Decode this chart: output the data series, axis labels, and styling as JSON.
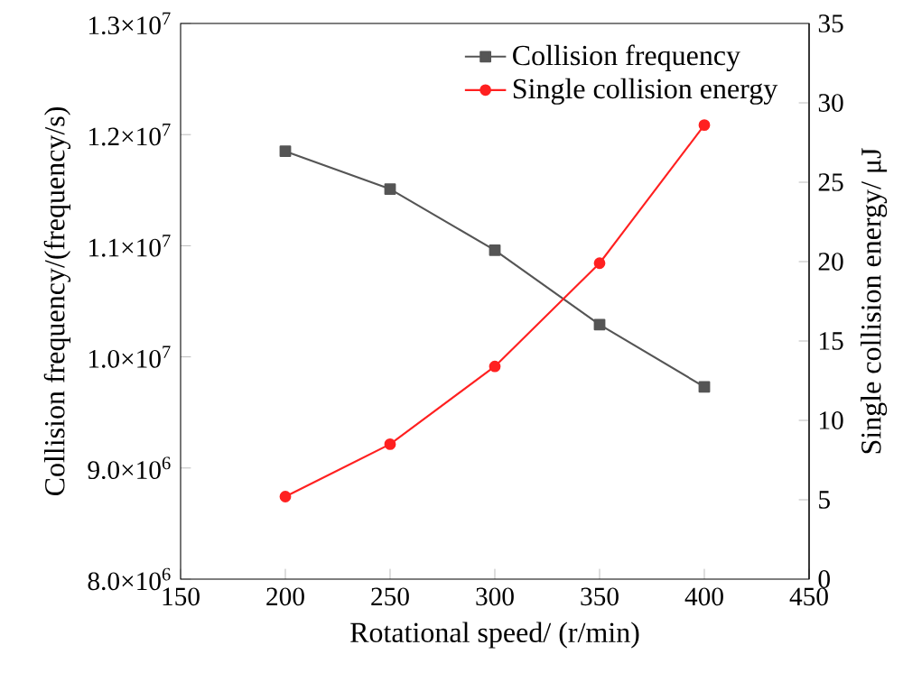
{
  "chart_data": {
    "type": "line",
    "xlabel": "Rotational speed/ (r/min)",
    "ylabel": "Collision frequency/(frequency/s)",
    "y2label": "Single collision energy/ μJ",
    "x": [
      200,
      250,
      300,
      350,
      400
    ],
    "series": [
      {
        "name": "Collision frequency",
        "color": "#555555",
        "marker": "square",
        "values": [
          11850000,
          11510000,
          10960000,
          10290000,
          9730000
        ]
      },
      {
        "name": "Single collision energy",
        "color": "#ff2020",
        "marker": "circle",
        "axis": "y2",
        "values": [
          5.2,
          8.5,
          13.4,
          19.9,
          28.6
        ]
      }
    ],
    "xlim": [
      150,
      450
    ],
    "xticks": [
      150,
      200,
      250,
      300,
      350,
      400,
      450
    ],
    "ylim": [
      8000000,
      13000000
    ],
    "yticks": [
      {
        "value": 8000000,
        "label": "8.0×10$^{6}$"
      },
      {
        "value": 9000000,
        "label": "9.0×10$^{6}$"
      },
      {
        "value": 10000000,
        "label": "1.0×10$^{7}$"
      },
      {
        "value": 11000000,
        "label": "1.1×10$^{7}$"
      },
      {
        "value": 12000000,
        "label": "1.2×10$^{7}$"
      },
      {
        "value": 13000000,
        "label": "1.3×10$^{7}$"
      }
    ],
    "y2lim": [
      0,
      35
    ],
    "y2ticks": [
      0,
      5,
      10,
      15,
      20,
      25,
      30,
      35
    ],
    "legend": "top right",
    "grid": false,
    "line_style": "solid"
  }
}
